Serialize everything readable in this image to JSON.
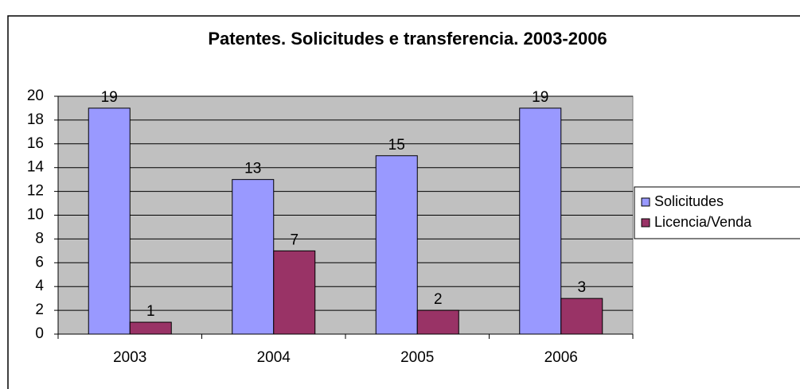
{
  "chart_data": {
    "type": "bar",
    "title": "Patentes. Solicitudes e transferencia. 2003-2006",
    "categories": [
      "2003",
      "2004",
      "2005",
      "2006"
    ],
    "series": [
      {
        "name": "Solicitudes",
        "color": "#9999ff",
        "values": [
          19,
          13,
          15,
          19
        ]
      },
      {
        "name": "Licencia/Venda",
        "color": "#993366",
        "values": [
          1,
          7,
          2,
          3
        ]
      }
    ],
    "ylim": [
      0,
      20
    ],
    "yticks": [
      0,
      2,
      4,
      6,
      8,
      10,
      12,
      14,
      16,
      18,
      20
    ],
    "grid": true,
    "legend": "right"
  }
}
